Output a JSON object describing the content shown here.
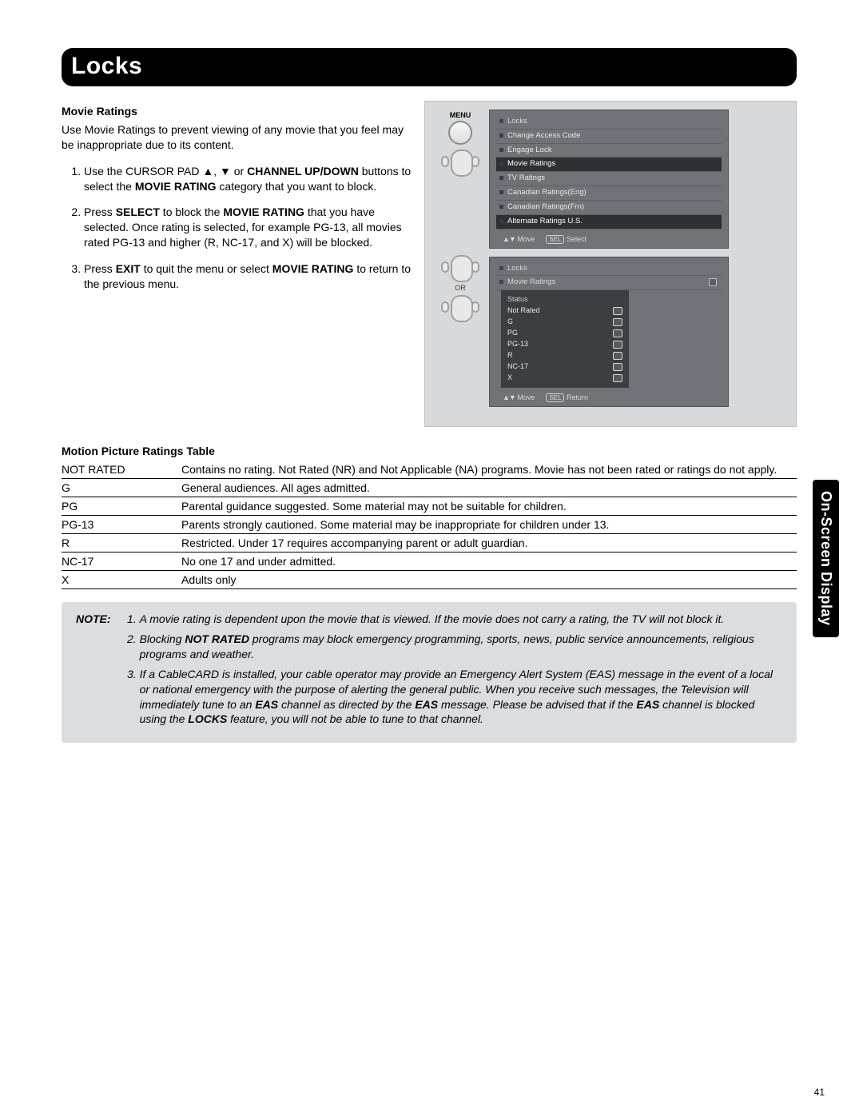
{
  "title": "Locks",
  "side_tab": "On-Screen Display",
  "page_number": "41",
  "movie_ratings": {
    "heading": "Movie Ratings",
    "intro": "Use Movie Ratings to prevent viewing of any movie that you feel may be inappropriate due to its content.",
    "steps": [
      {
        "pre": "Use the CURSOR PAD ",
        "b1": "▲",
        "mid1": ", ",
        "b2": "▼",
        "mid2": " or ",
        "b3": "CHANNEL UP/DOWN",
        "post": " buttons to select the ",
        "b4": "MOVIE RATING",
        "tail": " category that you want to block."
      },
      {
        "pre": "Press ",
        "b1": "SELECT",
        "mid1": " to block the ",
        "b2": "MOVIE RATING",
        "post": " that you have selected. Once rating is selected, for example PG-13, all movies rated PG-13 and higher (R, NC-17, and X) will be blocked."
      },
      {
        "pre": "Press ",
        "b1": "EXIT",
        "mid1": " to quit the menu or select ",
        "b2": "MOVIE RATING",
        "post": " to return to the previous menu."
      }
    ]
  },
  "osd1": {
    "label_menu": "MENU",
    "rows": [
      "Locks",
      "Change Access Code",
      "Engage Lock",
      "Movie Ratings",
      "TV Ratings",
      "Canadian Ratings(Eng)",
      "Canadian Ratings(Frn)",
      "Alternate Ratings U.S."
    ],
    "selected_index": 3,
    "foot_move": "Move",
    "foot_sel": "Select",
    "foot_sel_btn": "SEL"
  },
  "osd2": {
    "or_label": "OR",
    "header1": "Locks",
    "header2": "Movie Ratings",
    "status": "Status",
    "rows": [
      "Not Rated",
      "G",
      "PG",
      "PG-13",
      "R",
      "NC-17",
      "X"
    ],
    "foot_move": "Move",
    "foot_sel": "Return",
    "foot_sel_btn": "SEL"
  },
  "ratings_table": {
    "heading": "Motion Picture Ratings Table",
    "rows": [
      {
        "code": "NOT RATED",
        "desc": "Contains no rating. Not Rated (NR) and Not Applicable (NA) programs. Movie has not been rated or ratings do not apply."
      },
      {
        "code": "G",
        "desc": "General audiences. All ages admitted."
      },
      {
        "code": "PG",
        "desc": "Parental guidance suggested. Some material may not be suitable for children."
      },
      {
        "code": "PG-13",
        "desc": "Parents strongly cautioned. Some material may be inappropriate for children under 13."
      },
      {
        "code": "R",
        "desc": "Restricted. Under 17 requires accompanying parent or adult guardian."
      },
      {
        "code": "NC-17",
        "desc": "No one 17 and under admitted."
      },
      {
        "code": "X",
        "desc": "Adults only"
      }
    ]
  },
  "note": {
    "label": "NOTE:",
    "items": [
      {
        "text_pre": "A movie rating is dependent upon the movie that is viewed. If the movie does not carry a rating, the TV will not block it."
      },
      {
        "text_pre": "Blocking ",
        "b1": "NOT RATED",
        "text_post": " programs may block emergency programming, sports, news, public service announcements, religious programs and weather."
      },
      {
        "text_pre": "If a CableCARD is installed, your cable operator may provide an Emergency Alert System (EAS) message in the event of a local or national emergency with the purpose of alerting the general public. When you receive such messages, the Television will immediately tune to an ",
        "b1": "EAS",
        "text_mid": " channel as directed by the ",
        "b2": "EAS",
        "text_mid2": " message. Please be advised that if the ",
        "b3": "EAS",
        "text_mid3": " channel is blocked using the ",
        "b4": "LOCKS",
        "text_post": " feature, you will not be able to tune to that channel."
      }
    ]
  },
  "colors": {
    "title_bg": "#000000",
    "title_fg": "#ffffff",
    "fig_bg": "#d7d9db",
    "osd_bg": "#6f7276",
    "osd_sel": "#2e3033",
    "note_bg": "#dcdddf",
    "text": "#000000"
  }
}
